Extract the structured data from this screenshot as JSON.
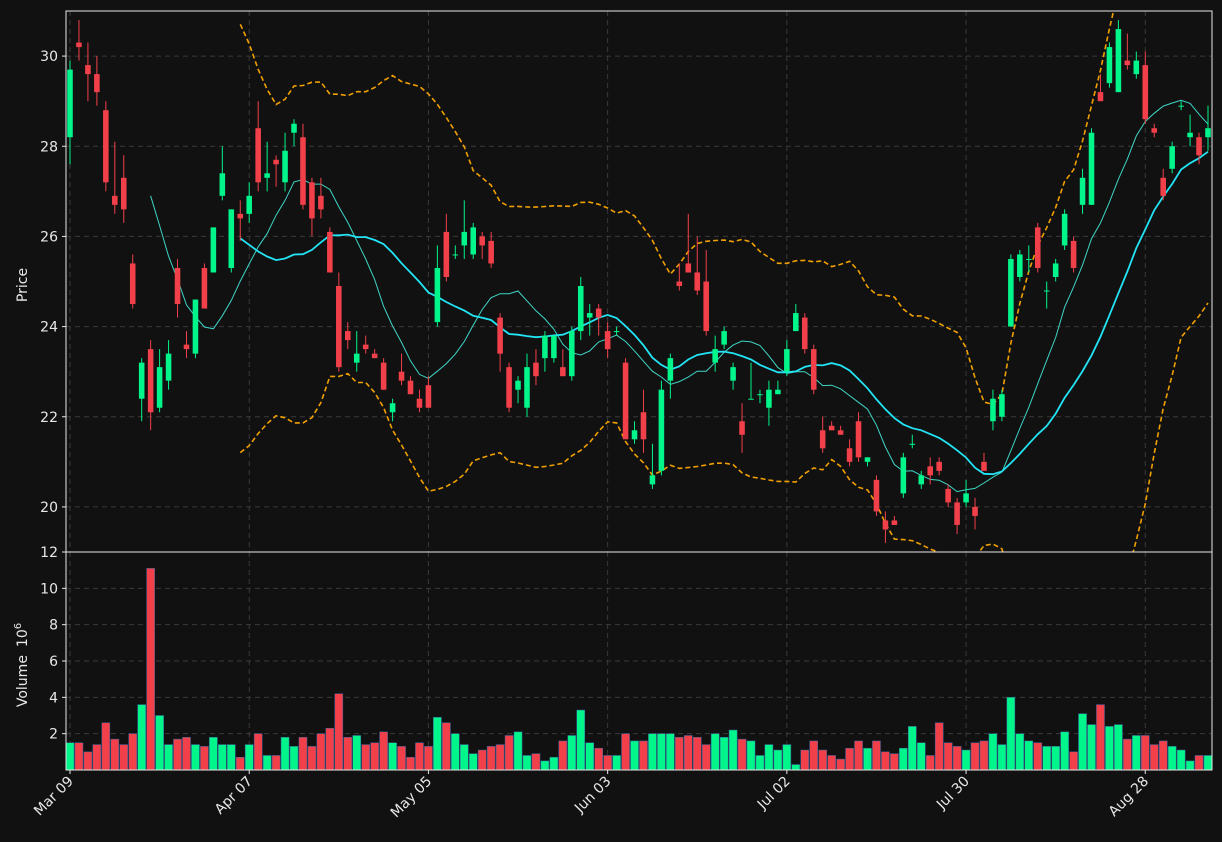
{
  "chart_data": {
    "type": "candlestick",
    "colors": {
      "background": "#111111",
      "up": "#00f58a",
      "down": "#f2404a",
      "ma_fast": "#3ed6c6",
      "ma_slow": "#22e4f5",
      "bands": "#f0a000",
      "grid": "#3a3a3a",
      "axis": "#e8e8e8"
    },
    "price_panel": {
      "ylabel": "Price",
      "ylim": [
        19.0,
        31.0
      ],
      "yticks": [
        20,
        22,
        24,
        26,
        28,
        30
      ]
    },
    "volume_panel": {
      "ylabel": "Volume",
      "exponent_label": "10",
      "exponent": "6",
      "ylim": [
        0,
        12
      ],
      "yticks": [
        2,
        4,
        6,
        8,
        10,
        12
      ]
    },
    "x_ticks": [
      {
        "i": 0,
        "label": "Mar 09"
      },
      {
        "i": 20,
        "label": "Apr 07"
      },
      {
        "i": 40,
        "label": "May 05"
      },
      {
        "i": 60,
        "label": "Jun 03"
      },
      {
        "i": 80,
        "label": "Jul 02"
      },
      {
        "i": 100,
        "label": "Jul 30"
      },
      {
        "i": 120,
        "label": "Aug 28"
      }
    ],
    "ohlc": [
      [
        28.2,
        29.9,
        27.6,
        29.7
      ],
      [
        30.3,
        30.8,
        29.9,
        30.2
      ],
      [
        29.8,
        30.3,
        29.0,
        29.6
      ],
      [
        29.6,
        30.0,
        28.9,
        29.2
      ],
      [
        28.8,
        29.0,
        27.0,
        27.2
      ],
      [
        26.9,
        28.1,
        26.5,
        26.7
      ],
      [
        27.3,
        27.8,
        26.3,
        26.6
      ],
      [
        25.4,
        25.6,
        24.4,
        24.5
      ],
      [
        22.4,
        23.3,
        21.9,
        23.2
      ],
      [
        23.5,
        23.7,
        21.7,
        22.1
      ],
      [
        22.2,
        23.5,
        22.1,
        23.1
      ],
      [
        22.8,
        23.7,
        22.6,
        23.4
      ],
      [
        25.3,
        25.5,
        24.2,
        24.5
      ],
      [
        23.6,
        23.9,
        23.3,
        23.5
      ],
      [
        23.4,
        24.6,
        23.3,
        24.6
      ],
      [
        25.3,
        25.4,
        24.4,
        24.4
      ],
      [
        25.2,
        26.2,
        25.2,
        26.2
      ],
      [
        26.9,
        28.0,
        26.8,
        27.4
      ],
      [
        25.3,
        26.6,
        25.2,
        26.6
      ],
      [
        26.5,
        26.8,
        25.9,
        26.4
      ],
      [
        26.5,
        27.2,
        26.3,
        26.9
      ],
      [
        28.4,
        29.0,
        27.0,
        27.2
      ],
      [
        27.3,
        28.1,
        27.0,
        27.4
      ],
      [
        27.7,
        27.8,
        27.1,
        27.6
      ],
      [
        27.2,
        28.3,
        27.0,
        27.9
      ],
      [
        28.3,
        28.6,
        28.0,
        28.5
      ],
      [
        28.2,
        28.5,
        26.6,
        26.7
      ],
      [
        27.2,
        27.3,
        26.0,
        26.4
      ],
      [
        26.9,
        27.3,
        26.4,
        26.6
      ],
      [
        26.1,
        26.2,
        25.2,
        25.2
      ],
      [
        24.9,
        25.2,
        23.0,
        23.1
      ],
      [
        23.9,
        24.1,
        23.5,
        23.7
      ],
      [
        23.2,
        23.9,
        23.0,
        23.4
      ],
      [
        23.6,
        23.8,
        23.4,
        23.5
      ],
      [
        23.4,
        23.5,
        23.3,
        23.3
      ],
      [
        23.2,
        23.3,
        22.6,
        22.6
      ],
      [
        22.1,
        22.4,
        21.9,
        22.3
      ],
      [
        23.0,
        23.4,
        22.7,
        22.8
      ],
      [
        22.8,
        22.9,
        22.5,
        22.5
      ],
      [
        22.4,
        22.6,
        22.1,
        22.2
      ],
      [
        22.7,
        22.9,
        22.2,
        22.2
      ],
      [
        24.1,
        25.8,
        24.0,
        25.3
      ],
      [
        26.1,
        26.5,
        25.0,
        25.1
      ],
      [
        25.6,
        25.8,
        25.5,
        25.6
      ],
      [
        25.8,
        26.8,
        25.5,
        26.1
      ],
      [
        25.6,
        26.3,
        25.5,
        26.2
      ],
      [
        26.0,
        26.1,
        25.5,
        25.8
      ],
      [
        25.9,
        26.1,
        25.3,
        25.4
      ],
      [
        24.2,
        24.3,
        23.0,
        23.4
      ],
      [
        23.1,
        23.2,
        22.1,
        22.2
      ],
      [
        22.6,
        22.9,
        22.3,
        22.8
      ],
      [
        22.2,
        23.4,
        22.0,
        23.1
      ],
      [
        23.2,
        23.5,
        22.7,
        22.9
      ],
      [
        23.3,
        23.9,
        23.0,
        23.8
      ],
      [
        23.3,
        23.8,
        23.2,
        23.8
      ],
      [
        23.1,
        23.5,
        22.9,
        22.9
      ],
      [
        22.9,
        24.0,
        22.8,
        23.9
      ],
      [
        23.9,
        25.1,
        23.7,
        24.9
      ],
      [
        24.2,
        24.5,
        23.8,
        24.3
      ],
      [
        24.4,
        24.5,
        23.8,
        24.2
      ],
      [
        23.9,
        24.1,
        23.3,
        23.5
      ],
      [
        23.9,
        24.0,
        23.8,
        23.9
      ],
      [
        23.2,
        23.3,
        21.5,
        21.5
      ],
      [
        21.5,
        21.9,
        21.4,
        21.7
      ],
      [
        22.1,
        22.6,
        21.2,
        21.5
      ],
      [
        20.5,
        21.4,
        20.4,
        20.7
      ],
      [
        20.8,
        22.8,
        20.7,
        22.6
      ],
      [
        22.8,
        23.4,
        22.4,
        23.3
      ],
      [
        25.0,
        25.4,
        24.8,
        24.9
      ],
      [
        25.4,
        26.5,
        25.2,
        25.2
      ],
      [
        25.2,
        26.0,
        24.7,
        24.8
      ],
      [
        25.0,
        25.7,
        23.8,
        23.9
      ],
      [
        23.2,
        23.8,
        23.0,
        23.5
      ],
      [
        23.6,
        24.0,
        23.5,
        23.9
      ],
      [
        22.8,
        23.2,
        22.6,
        23.1
      ],
      [
        21.9,
        22.3,
        21.2,
        21.6
      ],
      [
        22.4,
        23.2,
        22.4,
        22.4
      ],
      [
        22.5,
        22.6,
        22.3,
        22.5
      ],
      [
        22.2,
        22.8,
        21.8,
        22.6
      ],
      [
        22.5,
        22.8,
        22.5,
        22.6
      ],
      [
        23.0,
        23.7,
        22.9,
        23.5
      ],
      [
        23.9,
        24.5,
        23.9,
        24.3
      ],
      [
        24.2,
        24.3,
        23.4,
        23.5
      ],
      [
        23.5,
        23.6,
        22.5,
        22.6
      ],
      [
        21.7,
        22.0,
        21.2,
        21.3
      ],
      [
        21.8,
        21.9,
        21.7,
        21.7
      ],
      [
        21.7,
        21.8,
        21.6,
        21.6
      ],
      [
        21.3,
        21.5,
        20.9,
        21.0
      ],
      [
        21.9,
        22.1,
        21.0,
        21.1
      ],
      [
        21.0,
        21.1,
        20.9,
        21.1
      ],
      [
        20.6,
        20.7,
        19.8,
        19.9
      ],
      [
        19.7,
        19.9,
        19.2,
        19.5
      ],
      [
        19.7,
        19.8,
        19.6,
        19.6
      ],
      [
        20.3,
        21.2,
        20.2,
        21.1
      ],
      [
        21.4,
        21.6,
        21.3,
        21.4
      ],
      [
        20.5,
        20.8,
        20.4,
        20.7
      ],
      [
        20.9,
        21.1,
        20.5,
        20.7
      ],
      [
        21.0,
        21.1,
        20.7,
        20.8
      ],
      [
        20.4,
        20.5,
        20.0,
        20.1
      ],
      [
        20.1,
        20.2,
        19.4,
        19.6
      ],
      [
        20.1,
        20.6,
        20.0,
        20.3
      ],
      [
        20.0,
        20.2,
        19.5,
        19.8
      ],
      [
        21.0,
        21.2,
        20.8,
        20.8
      ],
      [
        21.9,
        22.6,
        21.7,
        22.4
      ],
      [
        22.0,
        22.6,
        21.9,
        22.5
      ],
      [
        24.0,
        25.6,
        24.0,
        25.5
      ],
      [
        25.1,
        25.7,
        25.0,
        25.6
      ],
      [
        25.5,
        25.8,
        25.2,
        25.5
      ],
      [
        26.2,
        26.3,
        25.2,
        25.3
      ],
      [
        24.8,
        25.0,
        24.4,
        24.8
      ],
      [
        25.1,
        25.5,
        25.0,
        25.4
      ],
      [
        25.8,
        26.6,
        25.7,
        26.5
      ],
      [
        25.9,
        26.0,
        25.2,
        25.3
      ],
      [
        26.7,
        27.5,
        26.5,
        27.3
      ],
      [
        26.7,
        28.4,
        26.7,
        28.3
      ],
      [
        29.2,
        29.6,
        29.0,
        29.0
      ],
      [
        29.4,
        30.3,
        29.3,
        30.2
      ],
      [
        29.2,
        30.8,
        29.2,
        30.6
      ],
      [
        29.9,
        30.5,
        29.7,
        29.8
      ],
      [
        29.6,
        30.1,
        29.5,
        29.9
      ],
      [
        29.8,
        30.1,
        28.5,
        28.6
      ],
      [
        28.4,
        28.5,
        28.2,
        28.3
      ],
      [
        27.3,
        27.5,
        26.8,
        26.9
      ],
      [
        27.5,
        28.1,
        27.4,
        28.0
      ],
      [
        28.9,
        29.0,
        28.8,
        28.9
      ],
      [
        28.2,
        28.7,
        28.0,
        28.3
      ],
      [
        28.2,
        28.3,
        27.6,
        27.8
      ],
      [
        28.2,
        28.9,
        27.9,
        28.4
      ]
    ],
    "volume_millions": [
      1.5,
      1.5,
      1.0,
      1.4,
      2.6,
      1.7,
      1.4,
      2.0,
      3.6,
      11.1,
      3.0,
      1.4,
      1.7,
      1.8,
      1.4,
      1.3,
      1.8,
      1.4,
      1.4,
      0.7,
      1.4,
      2.0,
      0.8,
      0.8,
      1.8,
      1.3,
      1.8,
      1.3,
      2.0,
      2.3,
      4.2,
      1.8,
      1.9,
      1.4,
      1.5,
      2.1,
      1.5,
      1.3,
      0.7,
      1.5,
      1.3,
      2.9,
      2.6,
      2.0,
      1.4,
      0.9,
      1.1,
      1.3,
      1.4,
      1.9,
      2.1,
      0.8,
      0.9,
      0.5,
      0.7,
      1.6,
      1.9,
      3.3,
      1.5,
      1.2,
      0.8,
      0.8,
      2.0,
      1.6,
      1.6,
      2.0,
      2.0,
      2.0,
      1.8,
      1.9,
      1.8,
      1.4,
      2.0,
      1.8,
      2.2,
      1.7,
      1.6,
      0.8,
      1.4,
      1.1,
      1.4,
      0.3,
      1.1,
      1.6,
      1.1,
      0.8,
      0.6,
      1.2,
      1.6,
      1.2,
      1.6,
      1.0,
      0.9,
      1.2,
      2.4,
      1.5,
      0.8,
      2.6,
      1.5,
      1.3,
      1.1,
      1.5,
      1.6,
      2.0,
      1.4,
      4.0,
      2.0,
      1.6,
      1.5,
      1.3,
      1.3,
      2.1,
      1.0,
      3.1,
      2.5,
      3.6,
      2.4,
      2.5,
      1.7,
      1.9,
      1.9,
      1.4,
      1.6,
      1.3,
      1.1,
      0.5,
      0.8,
      0.8
    ]
  }
}
